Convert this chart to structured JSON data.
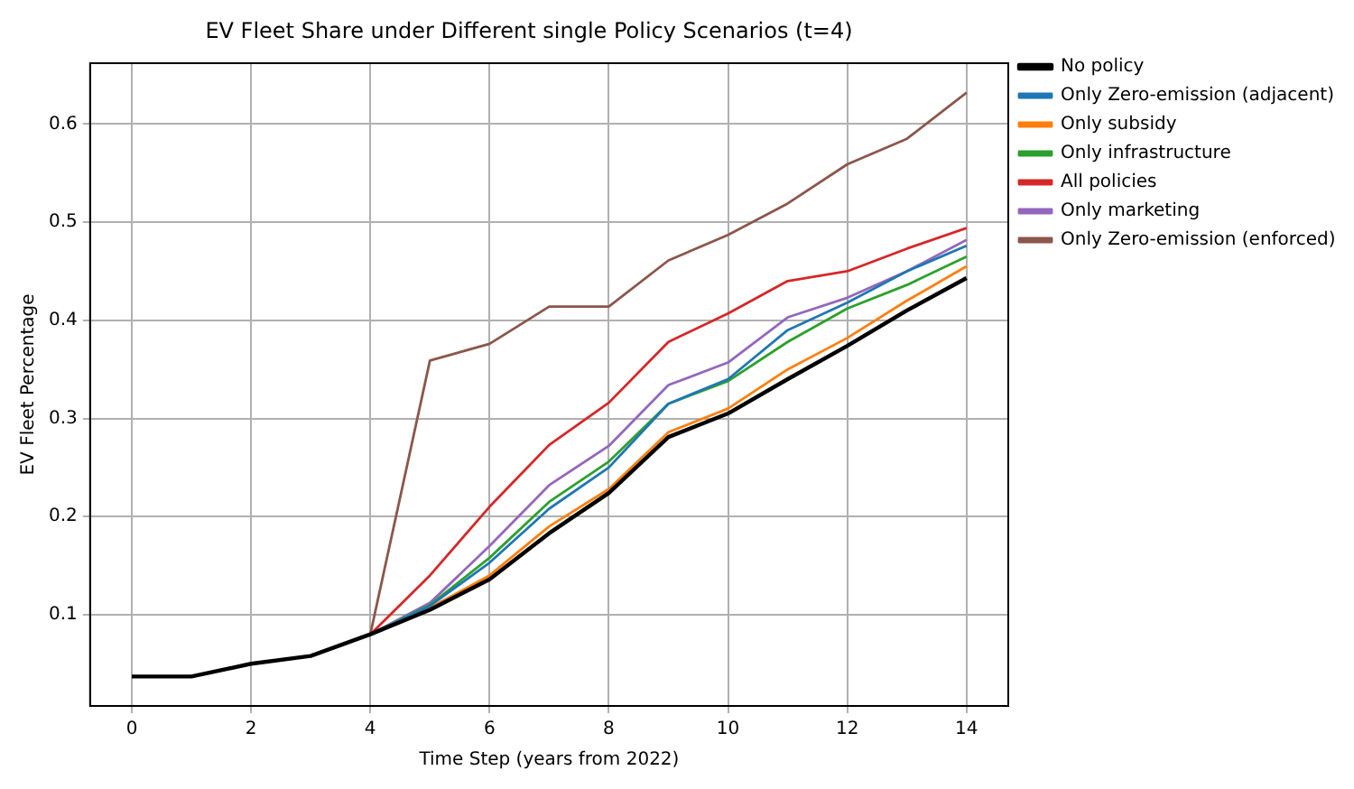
{
  "chart_data": {
    "type": "line",
    "title": "EV Fleet Share under Different single Policy Scenarios (t=4)",
    "xlabel": "Time Step (years from 2022)",
    "ylabel": "EV Fleet Percentage",
    "x": [
      0,
      1,
      2,
      3,
      4,
      5,
      6,
      7,
      8,
      9,
      10,
      11,
      12,
      13,
      14
    ],
    "series": [
      {
        "name": "No policy",
        "color": "#000000",
        "values": [
          0.037,
          0.037,
          0.05,
          0.058,
          0.08,
          0.105,
          0.136,
          0.183,
          0.224,
          0.281,
          0.305,
          0.34,
          0.374,
          0.41,
          0.443
        ]
      },
      {
        "name": "Only Zero-emission (adjacent)",
        "color": "#1f77b4",
        "values": [
          null,
          null,
          null,
          null,
          0.08,
          0.109,
          0.153,
          0.208,
          0.25,
          0.315,
          0.34,
          0.39,
          0.418,
          0.45,
          0.476
        ]
      },
      {
        "name": "Only subsidy",
        "color": "#ff7f0e",
        "values": [
          null,
          null,
          null,
          null,
          0.08,
          0.107,
          0.14,
          0.19,
          0.228,
          0.286,
          0.31,
          0.35,
          0.382,
          0.42,
          0.455
        ]
      },
      {
        "name": "Only infrastructure",
        "color": "#2ca02c",
        "values": [
          null,
          null,
          null,
          null,
          0.08,
          0.11,
          0.158,
          0.215,
          0.256,
          0.315,
          0.338,
          0.378,
          0.412,
          0.436,
          0.465
        ]
      },
      {
        "name": "All policies",
        "color": "#d62728",
        "values": [
          null,
          null,
          null,
          null,
          0.08,
          0.14,
          0.21,
          0.273,
          0.316,
          0.378,
          0.407,
          0.44,
          0.45,
          0.473,
          0.494
        ]
      },
      {
        "name": "Only marketing",
        "color": "#9467bd",
        "values": [
          null,
          null,
          null,
          null,
          0.08,
          0.112,
          0.17,
          0.232,
          0.272,
          0.334,
          0.357,
          0.403,
          0.423,
          0.45,
          0.482
        ]
      },
      {
        "name": "Only Zero-emission (enforced)",
        "color": "#8c564b",
        "values": [
          null,
          null,
          null,
          null,
          0.08,
          0.359,
          0.376,
          0.414,
          0.414,
          0.461,
          0.487,
          0.519,
          0.559,
          0.585,
          0.632
        ]
      }
    ],
    "xlim": [
      -0.7,
      14.7
    ],
    "xticks": [
      0,
      2,
      4,
      6,
      8,
      10,
      12,
      14
    ],
    "ylim": [
      0.007,
      0.662
    ],
    "yticks": [
      0.1,
      0.2,
      0.3,
      0.4,
      0.5,
      0.6
    ],
    "grid": true,
    "legend": "top right",
    "marker": "none",
    "line_style": "solid"
  }
}
